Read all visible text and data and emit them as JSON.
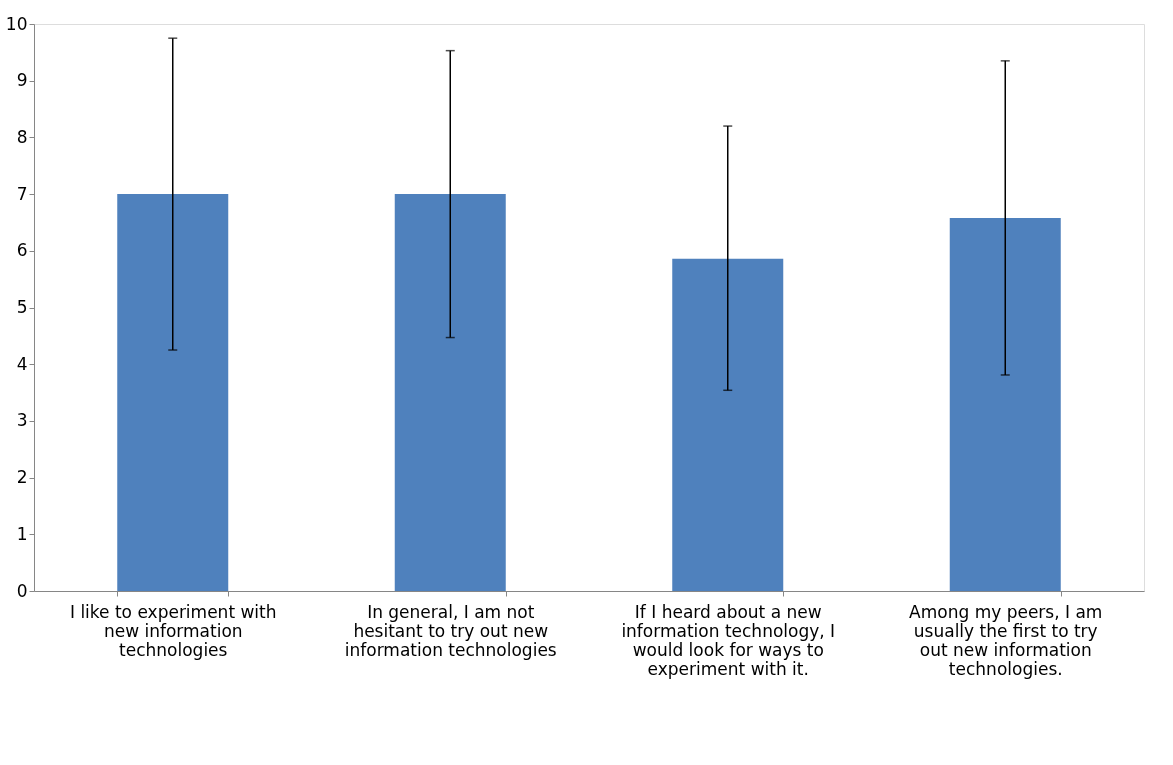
{
  "chart_data": {
    "type": "bar",
    "categories": [
      "I like to experiment with new information technologies",
      "In general, I am not hesitant to try out new information technologies",
      "If I heard about a new information technology, I would look for ways to experiment with it.",
      "Among my peers, I am usually the first to try out new information technologies."
    ],
    "values": [
      7.0,
      7.0,
      5.86,
      6.58
    ],
    "errors": [
      [
        4.25,
        9.75
      ],
      [
        4.47,
        9.53
      ],
      [
        3.54,
        8.2
      ],
      [
        3.81,
        9.35
      ]
    ],
    "color": "#4f81bd",
    "ylim": [
      0,
      10
    ],
    "yticks": [
      0,
      1,
      2,
      3,
      4,
      5,
      6,
      7,
      8,
      9,
      10
    ],
    "grid": false
  }
}
